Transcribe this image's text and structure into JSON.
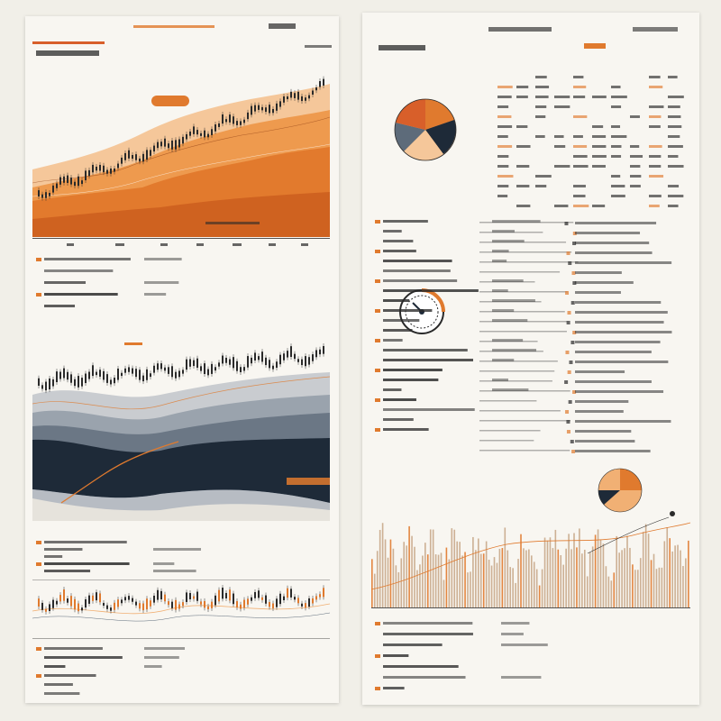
{
  "palette": {
    "orange": "#e07a2e",
    "light_orange": "#f1b074",
    "navy": "#1e2a38",
    "slate": "#5d6b7a",
    "cream": "#f8f6f1",
    "ink": "#2a2a2a"
  },
  "icons": [
    "pie-chart-icon",
    "gauge-icon",
    "candlestick-icon"
  ],
  "sheet_left": {
    "header": "",
    "panels": []
  },
  "sheet_right": {
    "header": "",
    "panels": []
  }
}
